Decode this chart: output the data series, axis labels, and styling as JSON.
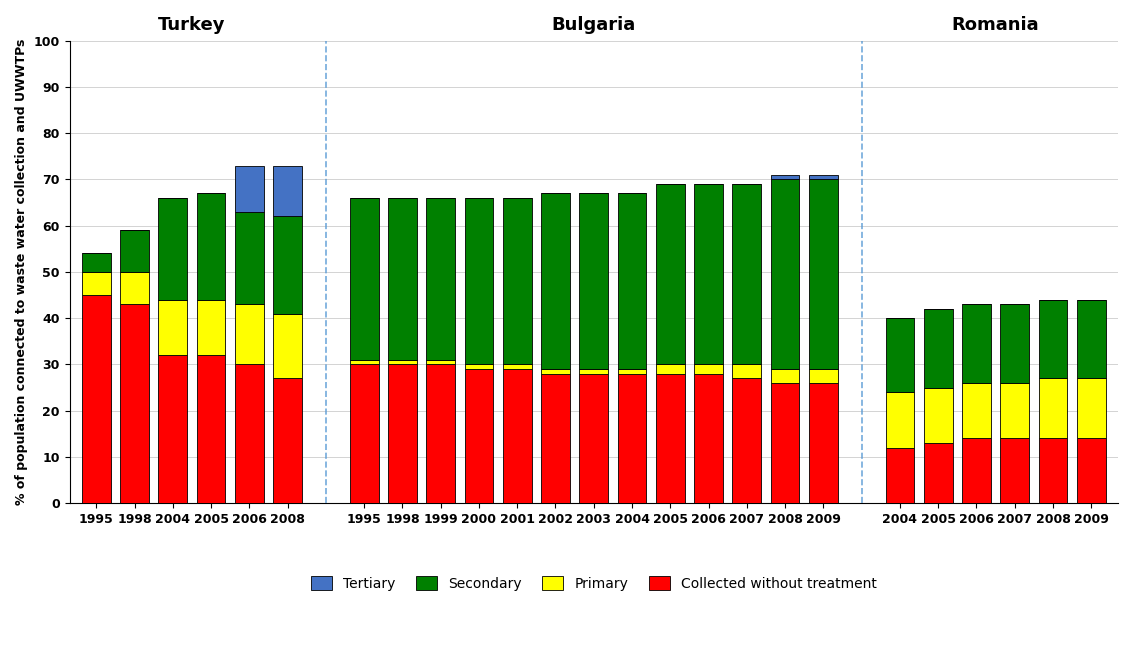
{
  "turkey": {
    "years": [
      "1995",
      "1998",
      "2004",
      "2005",
      "2006",
      "2008"
    ],
    "red": [
      45,
      43,
      32,
      32,
      30,
      27
    ],
    "yellow": [
      5,
      7,
      12,
      12,
      13,
      14
    ],
    "green": [
      4,
      9,
      22,
      23,
      20,
      21
    ],
    "blue": [
      0,
      0,
      0,
      0,
      10,
      11
    ]
  },
  "bulgaria": {
    "years": [
      "1995",
      "1998",
      "1999",
      "2000",
      "2001",
      "2002",
      "2003",
      "2004",
      "2005",
      "2006",
      "2007",
      "2008",
      "2009"
    ],
    "red": [
      30,
      30,
      30,
      29,
      29,
      28,
      28,
      28,
      28,
      28,
      27,
      26,
      26
    ],
    "yellow": [
      1,
      1,
      1,
      1,
      1,
      1,
      1,
      1,
      2,
      2,
      3,
      3,
      3
    ],
    "green": [
      35,
      35,
      35,
      36,
      36,
      38,
      38,
      38,
      39,
      39,
      39,
      41,
      41
    ],
    "blue": [
      0,
      0,
      0,
      0,
      0,
      0,
      0,
      0,
      0,
      0,
      0,
      1,
      1
    ]
  },
  "romania": {
    "years": [
      "2004",
      "2005",
      "2006",
      "2007",
      "2008",
      "2009"
    ],
    "red": [
      12,
      13,
      14,
      14,
      14,
      14
    ],
    "yellow": [
      12,
      12,
      12,
      12,
      13,
      13
    ],
    "green": [
      16,
      17,
      17,
      17,
      17,
      17
    ],
    "blue": [
      0,
      0,
      0,
      0,
      0,
      0
    ]
  },
  "colors": {
    "red": "#ff0000",
    "yellow": "#ffff00",
    "green": "#008000",
    "blue": "#4472c4"
  },
  "ylim": [
    0,
    100
  ],
  "yticks": [
    0,
    10,
    20,
    30,
    40,
    50,
    60,
    70,
    80,
    90,
    100
  ],
  "ylabel": "% of population connected to waste water collection and UWWTPs",
  "legend_labels": [
    "Tertiary",
    "Secondary",
    "Primary",
    "Collected without treatment"
  ],
  "turkey_label": "Turkey",
  "bulgaria_label": "Bulgaria",
  "romania_label": "Romania",
  "divider_color": "#5b9bd5",
  "background_color": "#ffffff"
}
